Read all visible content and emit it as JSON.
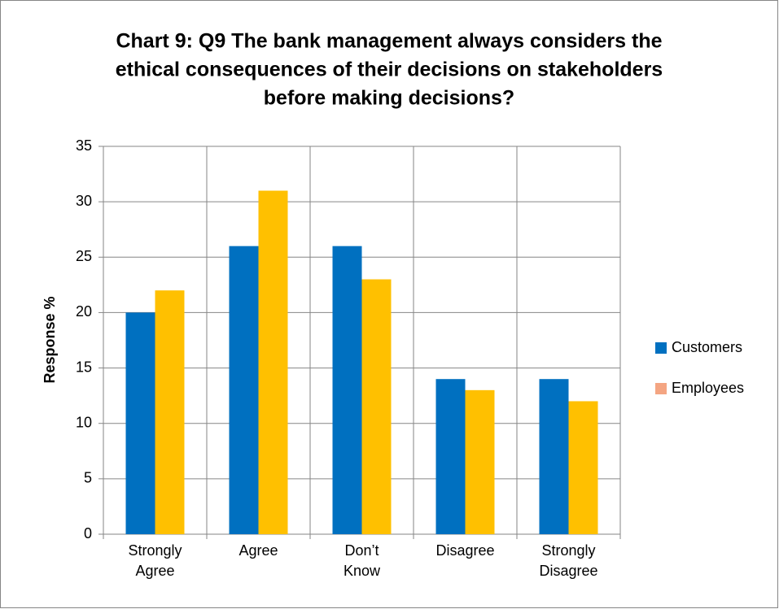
{
  "chart_data": {
    "type": "bar",
    "title": [
      "Chart 9: Q9 The bank management always considers the",
      "ethical consequences of their decisions on stakeholders",
      "before making decisions?"
    ],
    "y_label": "Response  %",
    "categories": [
      "Strongly Agree",
      "Agree",
      "Don’t Know",
      "Disagree",
      "Strongly Disagree"
    ],
    "series": [
      {
        "name": "Customers",
        "color": "#0070c0",
        "legend_color": "#0070c0",
        "values": [
          20,
          26,
          26,
          14,
          14
        ]
      },
      {
        "name": "Employees",
        "color": "#ffc000",
        "legend_color": "#f4a582",
        "values": [
          22,
          31,
          23,
          13,
          12
        ]
      }
    ],
    "ylim": [
      0,
      35
    ],
    "yticks": [
      0,
      5,
      10,
      15,
      20,
      25,
      30,
      35
    ],
    "grid": true,
    "legend": "right"
  }
}
